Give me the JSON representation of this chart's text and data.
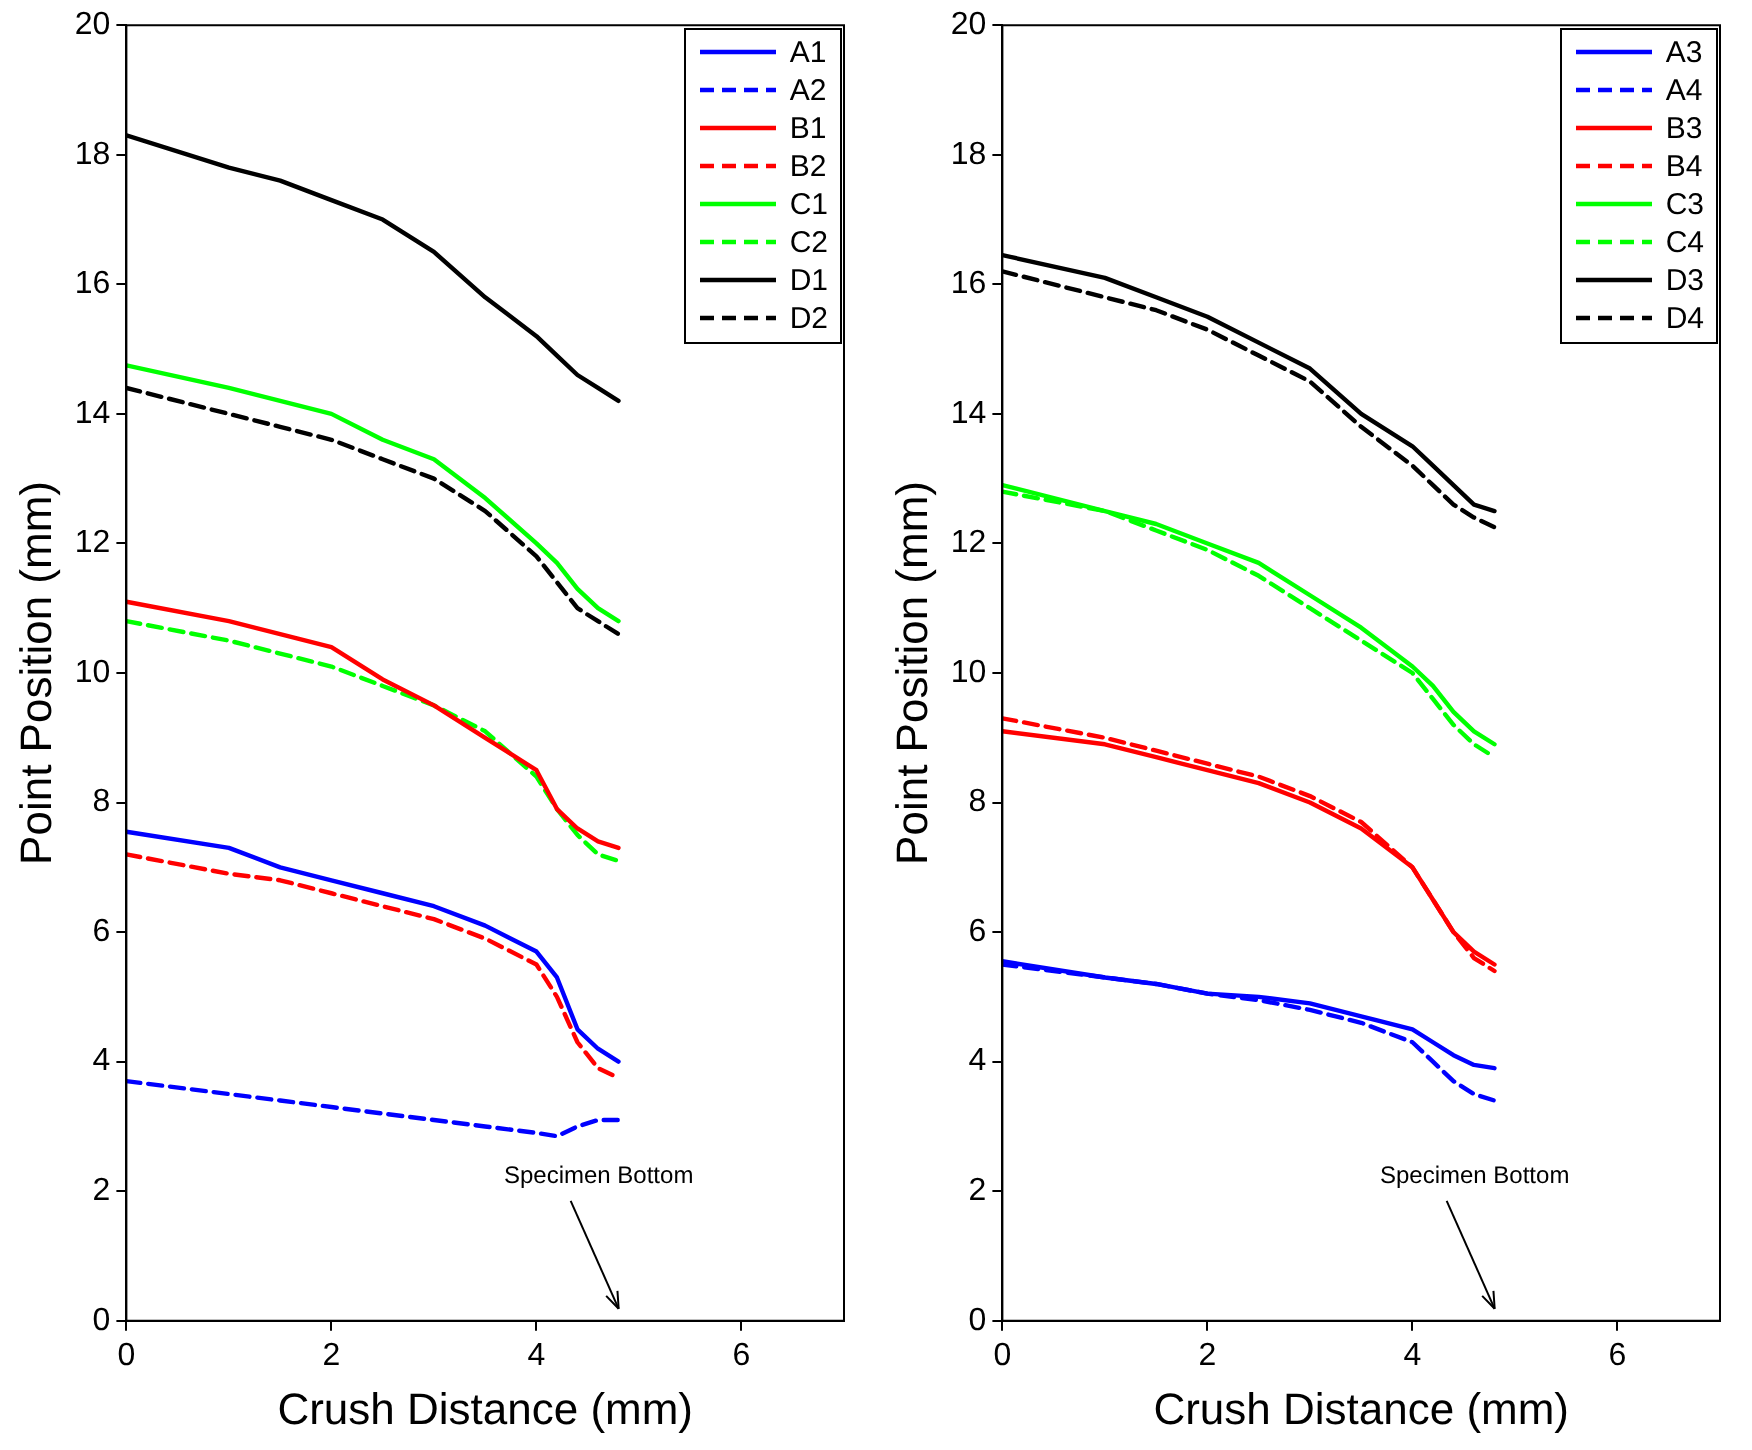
{
  "chart_data": [
    {
      "type": "line",
      "xlabel": "Crush Distance (mm)",
      "ylabel": "Point Position (mm)",
      "xlim": [
        0,
        7
      ],
      "xticks": [
        0,
        2,
        4,
        6
      ],
      "ylim": [
        0,
        20
      ],
      "yticks": [
        0,
        2,
        4,
        6,
        8,
        10,
        12,
        14,
        16,
        18,
        20
      ],
      "grid": false,
      "legend": "top right",
      "marker": "none",
      "x": [
        0,
        1,
        1.5,
        2,
        2.5,
        3,
        3.5,
        4,
        4.2,
        4.4,
        4.6,
        4.8
      ],
      "annotations": [
        "Specimen Bottom"
      ],
      "series": [
        {
          "name": "A1",
          "color": "#0000ff",
          "line_style": "solid",
          "values": [
            7.55,
            7.3,
            7.0,
            6.8,
            6.6,
            6.4,
            6.1,
            5.7,
            5.3,
            4.5,
            4.2,
            4.0
          ]
        },
        {
          "name": "A2",
          "color": "#0000ff",
          "line_style": "dashed",
          "values": [
            3.7,
            3.5,
            3.4,
            3.3,
            3.2,
            3.1,
            3.0,
            2.9,
            2.85,
            3.0,
            3.1,
            3.1
          ]
        },
        {
          "name": "B1",
          "color": "#ff0000",
          "line_style": "solid",
          "values": [
            11.1,
            10.8,
            10.6,
            10.4,
            9.9,
            9.5,
            9.0,
            8.5,
            7.9,
            7.6,
            7.4,
            7.3
          ]
        },
        {
          "name": "B2",
          "color": "#ff0000",
          "line_style": "dashed",
          "values": [
            7.2,
            6.9,
            6.8,
            6.6,
            6.4,
            6.2,
            5.9,
            5.5,
            5.0,
            4.3,
            3.9,
            3.75
          ]
        },
        {
          "name": "C1",
          "color": "#00ff00",
          "line_style": "solid",
          "values": [
            14.75,
            14.4,
            14.2,
            14.0,
            13.6,
            13.3,
            12.7,
            12.0,
            11.7,
            11.3,
            11.0,
            10.8
          ]
        },
        {
          "name": "C2",
          "color": "#00ff00",
          "line_style": "dashed",
          "values": [
            10.8,
            10.5,
            10.3,
            10.1,
            9.8,
            9.5,
            9.1,
            8.4,
            7.9,
            7.5,
            7.2,
            7.1
          ]
        },
        {
          "name": "D1",
          "color": "#000000",
          "line_style": "solid",
          "values": [
            18.3,
            17.8,
            17.6,
            17.3,
            17.0,
            16.5,
            15.8,
            15.2,
            14.9,
            14.6,
            14.4,
            14.2
          ]
        },
        {
          "name": "D2",
          "color": "#000000",
          "line_style": "dashed",
          "values": [
            14.4,
            14.0,
            13.8,
            13.6,
            13.3,
            13.0,
            12.5,
            11.8,
            11.4,
            11.0,
            10.8,
            10.6
          ]
        }
      ]
    },
    {
      "type": "line",
      "xlabel": "Crush Distance (mm)",
      "ylabel": "Point Position (mm)",
      "xlim": [
        0,
        7
      ],
      "xticks": [
        0,
        2,
        4,
        6
      ],
      "ylim": [
        0,
        20
      ],
      "yticks": [
        0,
        2,
        4,
        6,
        8,
        10,
        12,
        14,
        16,
        18,
        20
      ],
      "grid": false,
      "legend": "top right",
      "marker": "none",
      "x": [
        0,
        1,
        1.5,
        2,
        2.5,
        3,
        3.5,
        4,
        4.2,
        4.4,
        4.6,
        4.8
      ],
      "annotations": [
        "Specimen Bottom"
      ],
      "series": [
        {
          "name": "A3",
          "color": "#0000ff",
          "line_style": "solid",
          "values": [
            5.55,
            5.3,
            5.2,
            5.05,
            5.0,
            4.9,
            4.7,
            4.5,
            4.3,
            4.1,
            3.95,
            3.9
          ]
        },
        {
          "name": "A4",
          "color": "#0000ff",
          "line_style": "dashed",
          "values": [
            5.5,
            5.3,
            5.2,
            5.05,
            4.95,
            4.8,
            4.6,
            4.3,
            4.0,
            3.7,
            3.5,
            3.4
          ]
        },
        {
          "name": "B3",
          "color": "#ff0000",
          "line_style": "solid",
          "values": [
            9.1,
            8.9,
            8.7,
            8.5,
            8.3,
            8.0,
            7.6,
            7.0,
            6.5,
            6.0,
            5.7,
            5.5
          ]
        },
        {
          "name": "B4",
          "color": "#ff0000",
          "line_style": "dashed",
          "values": [
            9.3,
            9.0,
            8.8,
            8.6,
            8.4,
            8.1,
            7.7,
            7.0,
            6.5,
            6.0,
            5.6,
            5.4
          ]
        },
        {
          "name": "C3",
          "color": "#00ff00",
          "line_style": "solid",
          "values": [
            12.9,
            12.5,
            12.3,
            12.0,
            11.7,
            11.2,
            10.7,
            10.1,
            9.8,
            9.4,
            9.1,
            8.9
          ]
        },
        {
          "name": "C4",
          "color": "#00ff00",
          "line_style": "dashed",
          "values": [
            12.8,
            12.5,
            12.2,
            11.9,
            11.5,
            11.0,
            10.5,
            10.0,
            9.6,
            9.2,
            8.9,
            8.7
          ]
        },
        {
          "name": "D3",
          "color": "#000000",
          "line_style": "solid",
          "values": [
            16.45,
            16.1,
            15.8,
            15.5,
            15.1,
            14.7,
            14.0,
            13.5,
            13.2,
            12.9,
            12.6,
            12.5
          ]
        },
        {
          "name": "D4",
          "color": "#000000",
          "line_style": "dashed",
          "values": [
            16.2,
            15.8,
            15.6,
            15.3,
            14.9,
            14.5,
            13.8,
            13.2,
            12.9,
            12.6,
            12.4,
            12.25
          ]
        }
      ]
    }
  ]
}
